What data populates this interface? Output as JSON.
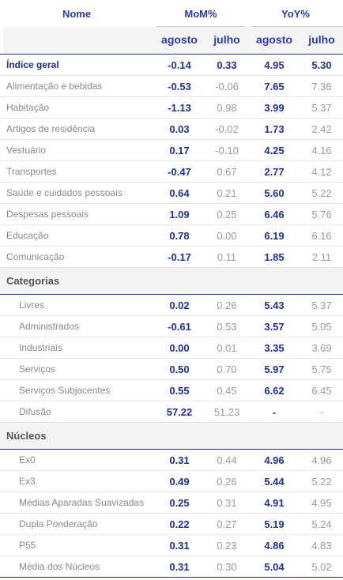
{
  "header": {
    "name": "Nome",
    "mom": "MoM%",
    "yoy": "YoY%",
    "sub": [
      "agosto",
      "julho",
      "agosto",
      "julho"
    ]
  },
  "main": {
    "rows": [
      [
        "Índice geral",
        "-0.14",
        "0.33",
        "4.95",
        "5.30"
      ],
      [
        "Alimentação e bebidas",
        "-0.53",
        "-0.06",
        "7.65",
        "7.36"
      ],
      [
        "Habitação",
        "-1.13",
        "0.98",
        "3.99",
        "5.37"
      ],
      [
        "Artigos de residência",
        "0.03",
        "-0.02",
        "1.73",
        "2.42"
      ],
      [
        "Vestuário",
        "0.17",
        "-0.10",
        "4.25",
        "4.16"
      ],
      [
        "Transportes",
        "-0.47",
        "0.67",
        "2.77",
        "4.12"
      ],
      [
        "Saúde e cuidados pessoais",
        "0.64",
        "0.21",
        "5.60",
        "5.22"
      ],
      [
        "Despesas pessoais",
        "1.09",
        "0.25",
        "6.46",
        "5.76"
      ],
      [
        "Educação",
        "0.78",
        "0.00",
        "6.19",
        "6.16"
      ],
      [
        "Comunicação",
        "-0.17",
        "0.11",
        "1.85",
        "2.11"
      ]
    ]
  },
  "sections": [
    {
      "title": "Categorias",
      "rows": [
        [
          "Livres",
          "0.02",
          "0.26",
          "5.43",
          "5.37"
        ],
        [
          "Administrados",
          "-0.61",
          "0.53",
          "3.57",
          "5.05"
        ],
        [
          "Industriais",
          "0.00",
          "0.01",
          "3.35",
          "3.69"
        ],
        [
          "Serviços",
          "0.50",
          "0.70",
          "5.97",
          "5.75"
        ],
        [
          "Serviços Subjacentes",
          "0.55",
          "0.45",
          "6.62",
          "6.45"
        ],
        [
          "Difusão",
          "57.22",
          "51.23",
          "-",
          "-"
        ]
      ]
    },
    {
      "title": "Núcleos",
      "rows": [
        [
          "Ex0",
          "0.31",
          "0.44",
          "4.96",
          "4.96"
        ],
        [
          "Ex3",
          "0.49",
          "0.26",
          "5.44",
          "5.22"
        ],
        [
          "Médias Aparadas Suavizadas",
          "0.25",
          "0.31",
          "4.91",
          "4.95"
        ],
        [
          "Dupla Ponderação",
          "0.22",
          "0.27",
          "5.19",
          "5.24"
        ],
        [
          "P55",
          "0.31",
          "0.23",
          "4.86",
          "4.83"
        ],
        [
          "Média dos Núcleos",
          "0.31",
          "0.30",
          "5.04",
          "5.02"
        ]
      ]
    }
  ]
}
